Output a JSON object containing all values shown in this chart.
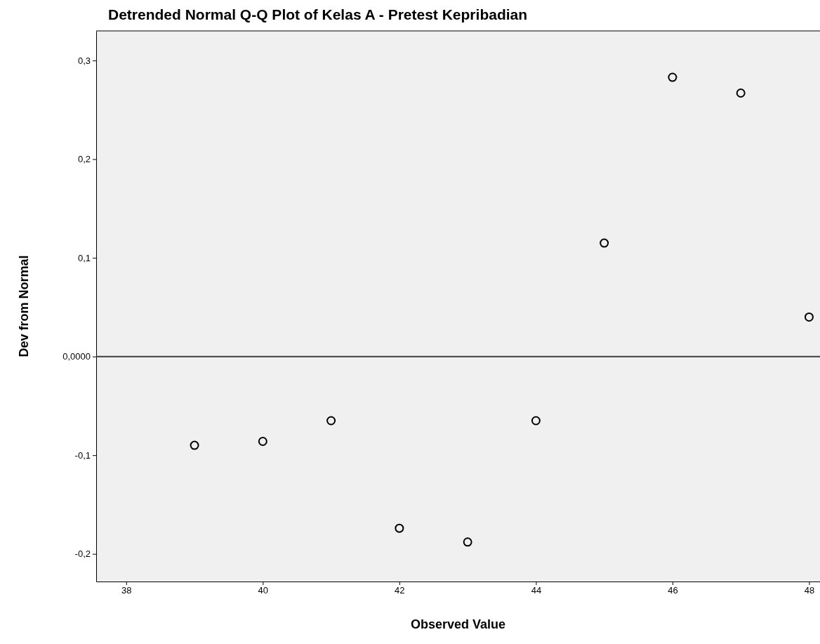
{
  "chart_data": {
    "type": "scatter",
    "title": "Detrended Normal Q-Q Plot of Kelas A - Pretest Kepribadian",
    "xlabel": "Observed Value",
    "ylabel": "Dev from Normal",
    "x": [
      39,
      40,
      41,
      42,
      43,
      44,
      45,
      46,
      47,
      48
    ],
    "series": [
      {
        "color": "#000000",
        "values": [
          -0.09,
          -0.086,
          -0.065,
          -0.174,
          -0.188,
          -0.065,
          0.115,
          0.283,
          0.267,
          0.04
        ]
      }
    ],
    "xlim": [
      37.56,
      48.16
    ],
    "xticks": [
      38,
      40,
      42,
      44,
      46,
      48
    ],
    "ylim": [
      -0.228,
      0.33
    ],
    "yticks": [
      {
        "value": -0.2,
        "label": "-0,2"
      },
      {
        "value": -0.1,
        "label": "-0,1"
      },
      {
        "value": 0,
        "label": "0,0000"
      },
      {
        "value": 0.1,
        "label": "0,1"
      },
      {
        "value": 0.2,
        "label": "0,2"
      },
      {
        "value": 0.3,
        "label": "0,3"
      }
    ],
    "ref_lines": [
      {
        "axis": "y",
        "value": 0,
        "color": "#3c3c3c"
      }
    ],
    "marker": "circle"
  }
}
